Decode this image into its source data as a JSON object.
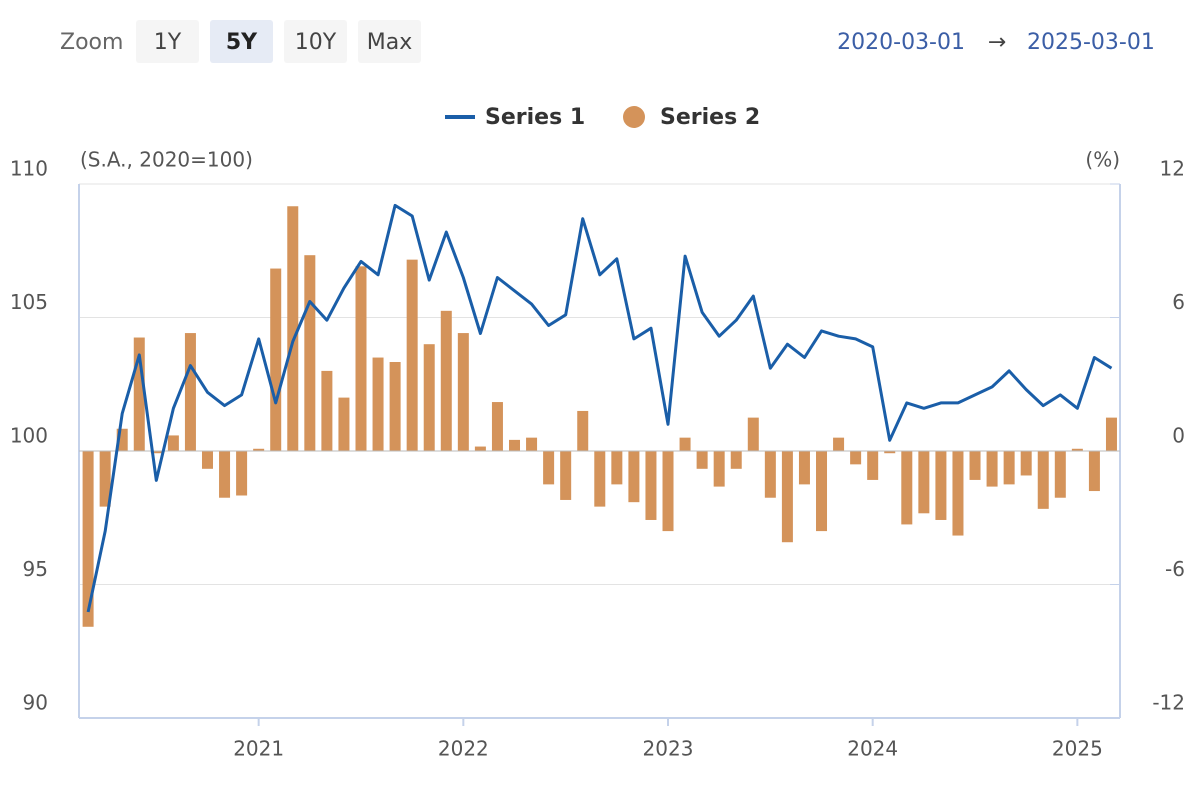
{
  "toolbar": {
    "zoom_label": "Zoom",
    "zoom_options": [
      "1Y",
      "5Y",
      "10Y",
      "Max"
    ],
    "zoom_selected": 1,
    "range_from": "2020-03-01",
    "range_arrow": "→",
    "range_to": "2025-03-01"
  },
  "chart_data": {
    "type": "bar-line",
    "y_axis_label": "(S.A., 2020=100)",
    "y2_axis_label": "(%)",
    "x": [
      "2020-03",
      "2020-04",
      "2020-05",
      "2020-06",
      "2020-07",
      "2020-08",
      "2020-09",
      "2020-10",
      "2020-11",
      "2020-12",
      "2021-01",
      "2021-02",
      "2021-03",
      "2021-04",
      "2021-05",
      "2021-06",
      "2021-07",
      "2021-08",
      "2021-09",
      "2021-10",
      "2021-11",
      "2021-12",
      "2022-01",
      "2022-02",
      "2022-03",
      "2022-04",
      "2022-05",
      "2022-06",
      "2022-07",
      "2022-08",
      "2022-09",
      "2022-10",
      "2022-11",
      "2022-12",
      "2023-01",
      "2023-02",
      "2023-03",
      "2023-04",
      "2023-05",
      "2023-06",
      "2023-07",
      "2023-08",
      "2023-09",
      "2023-10",
      "2023-11",
      "2023-12",
      "2024-01",
      "2024-02",
      "2024-03",
      "2024-04",
      "2024-05",
      "2024-06",
      "2024-07",
      "2024-08",
      "2024-09",
      "2024-10",
      "2024-11",
      "2024-12",
      "2025-01",
      "2025-02",
      "2025-03"
    ],
    "series": [
      {
        "name": "Series 1",
        "type": "line",
        "color": "#1a5ea8",
        "axis": "y",
        "values": [
          93.97,
          97.0,
          101.4,
          103.6,
          98.9,
          101.6,
          103.2,
          102.2,
          101.7,
          102.1,
          104.2,
          101.8,
          104.1,
          105.6,
          104.9,
          106.1,
          107.1,
          106.6,
          109.2,
          108.8,
          106.4,
          108.2,
          106.5,
          104.4,
          106.5,
          106.0,
          105.5,
          104.7,
          105.1,
          108.7,
          106.6,
          107.2,
          104.2,
          104.6,
          101.0,
          107.3,
          105.2,
          104.3,
          104.9,
          105.8,
          103.1,
          104.0,
          103.5,
          104.5,
          104.3,
          104.2,
          103.9,
          100.4,
          101.8,
          101.6,
          101.8,
          101.8,
          102.1,
          102.4,
          103.0,
          102.3,
          101.7,
          102.1,
          101.6,
          103.5,
          103.1
        ]
      },
      {
        "name": "Series 2",
        "type": "bar",
        "color": "#d4935a",
        "axis": "y2",
        "values": [
          -7.9,
          -2.5,
          1.0,
          5.1,
          -0.1,
          0.7,
          5.3,
          -0.8,
          -2.1,
          -2.0,
          0.1,
          8.2,
          11.0,
          8.8,
          3.6,
          2.4,
          8.3,
          4.2,
          4.0,
          8.6,
          4.8,
          6.3,
          5.3,
          0.2,
          2.2,
          0.5,
          0.6,
          -1.5,
          -2.2,
          1.8,
          -2.5,
          -1.5,
          -2.3,
          -3.1,
          -3.6,
          0.6,
          -0.8,
          -1.6,
          -0.8,
          1.5,
          -2.1,
          -4.1,
          -1.5,
          -3.6,
          0.6,
          -0.6,
          -1.3,
          -0.1,
          -3.3,
          -2.8,
          -3.1,
          -3.8,
          -1.3,
          -1.6,
          -1.5,
          -1.1,
          -2.6,
          -2.1,
          0.1,
          -1.8,
          1.5
        ]
      }
    ],
    "xlim": [
      "2020-02-15",
      "2025-03-16"
    ],
    "xticks": [
      {
        "value": "2021-01",
        "label": "2021"
      },
      {
        "value": "2022-01",
        "label": "2022"
      },
      {
        "value": "2023-01",
        "label": "2023"
      },
      {
        "value": "2024-01",
        "label": "2024"
      },
      {
        "value": "2025-01",
        "label": "2025"
      }
    ],
    "ylim": [
      90,
      110
    ],
    "yticks": [
      90,
      95,
      100,
      105,
      110
    ],
    "y2lim": [
      -12,
      12
    ],
    "y2ticks": [
      -12,
      -6,
      0,
      6,
      12
    ],
    "grid": true,
    "legend": "top"
  }
}
